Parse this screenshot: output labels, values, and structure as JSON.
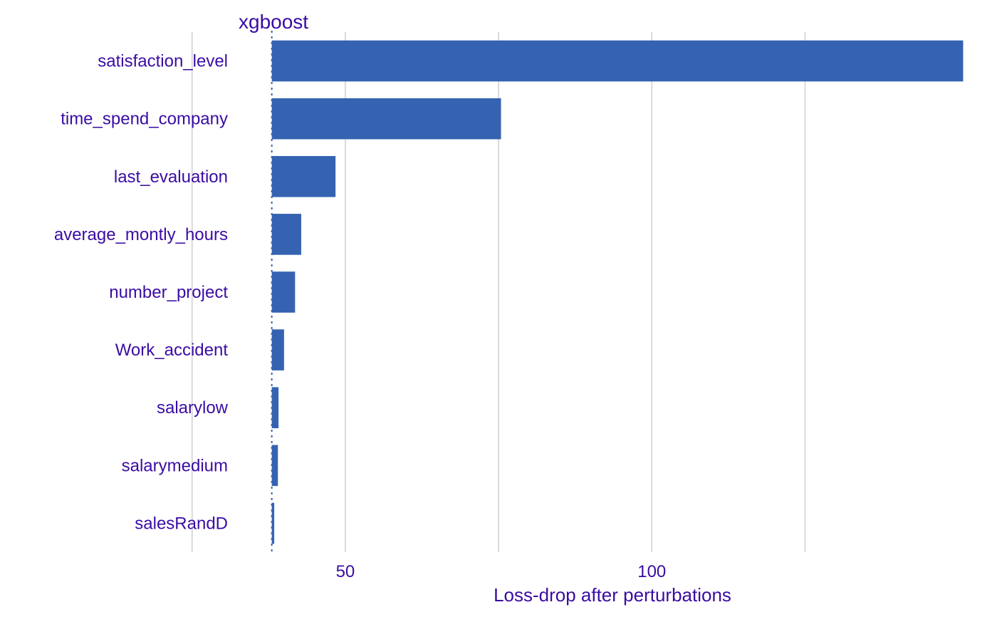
{
  "chart_data": {
    "type": "bar",
    "orientation": "horizontal",
    "title": "xgboost",
    "xlabel": "Loss-drop after perturbations",
    "ylabel": "",
    "baseline": 38,
    "categories": [
      "satisfaction_level",
      "time_spend_company",
      "last_evaluation",
      "average_montly_hours",
      "number_project",
      "Work_accident",
      "salarylow",
      "salarymedium",
      "salesRandD"
    ],
    "values": [
      150.8,
      75.4,
      48.4,
      42.8,
      41.8,
      40.0,
      39.1,
      39.0,
      38.4
    ],
    "xticks": [
      50,
      100
    ],
    "minor_gridlines": [
      25,
      75,
      125
    ],
    "xlim": [
      32,
      154
    ],
    "grid": true,
    "legend": "none",
    "colors": {
      "bar": "#3563b1",
      "text": "#3a0ca3",
      "grid": "#dadada"
    }
  }
}
